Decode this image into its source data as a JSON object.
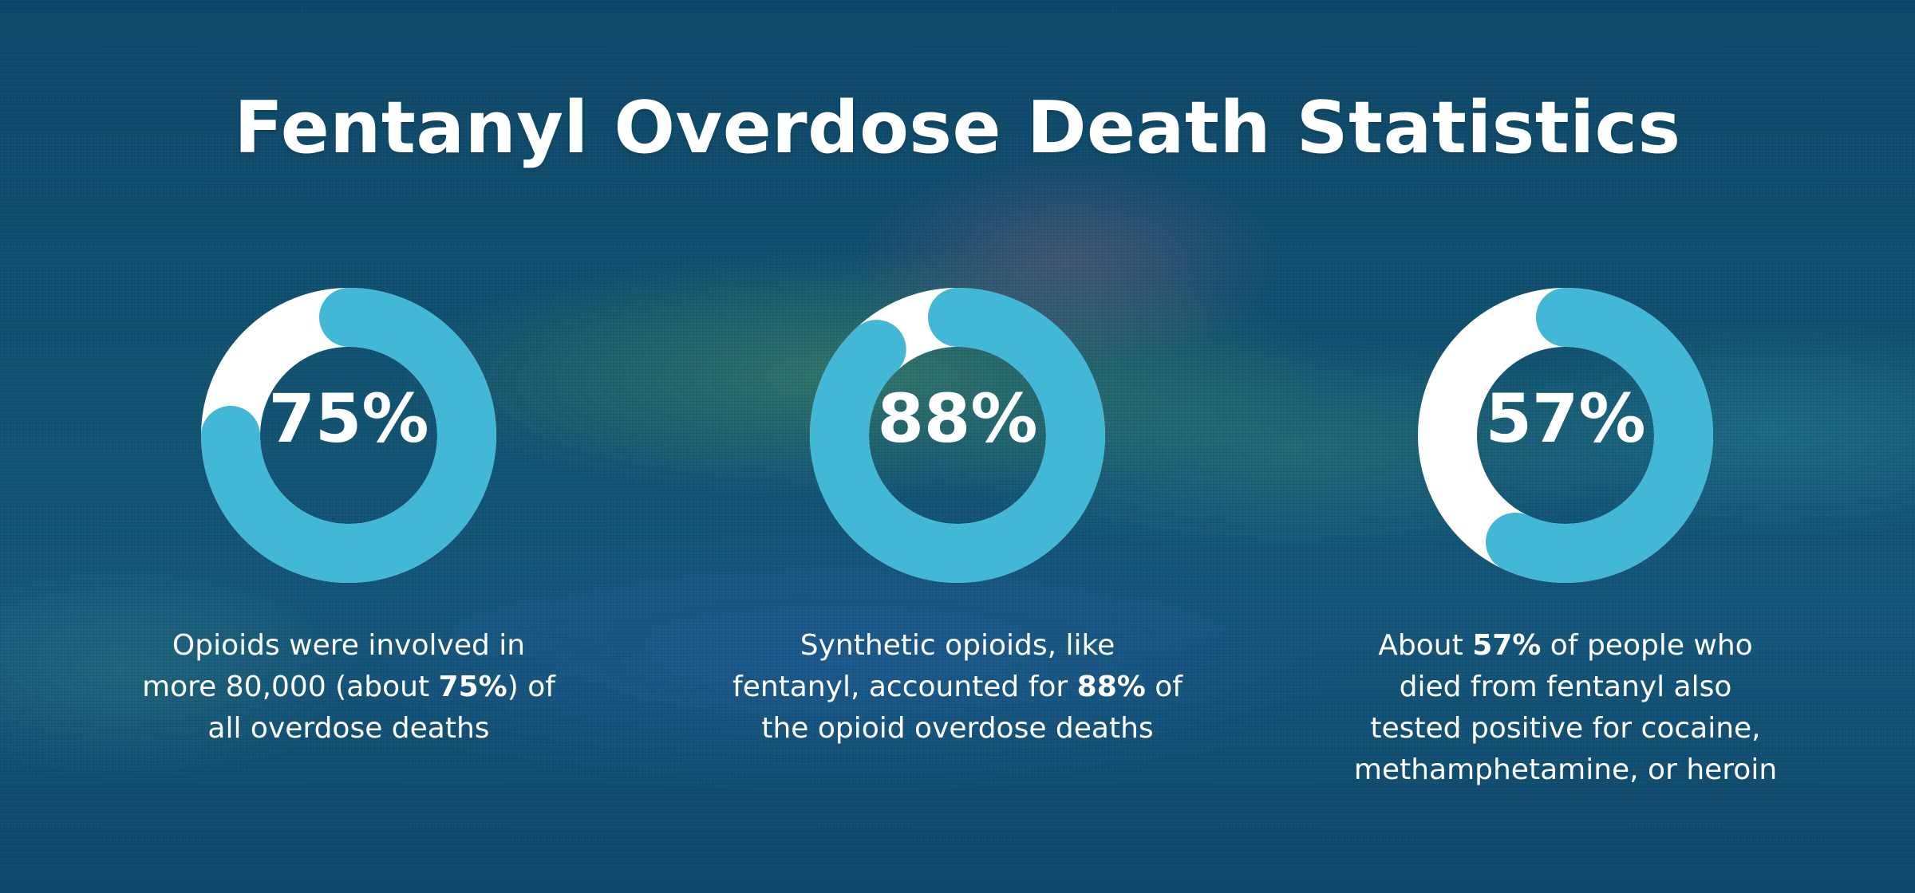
{
  "title": "Fentanyl Overdose Death Statistics",
  "colors": {
    "ring_track": "#ffffff",
    "ring_fill": "#43b7d6",
    "text": "#ffffff"
  },
  "stats": [
    {
      "value_text": "75%",
      "caption": {
        "l1": "Opioids were involved in",
        "l2_pre": "more 80,000 (about ",
        "l2_bold": "75%",
        "l2_post": ") of",
        "l3": "all overdose deaths"
      }
    },
    {
      "value_text": "88%",
      "caption": {
        "l1": "Synthetic opioids, like",
        "l2_pre": "fentanyl, accounted for ",
        "l2_bold": "88%",
        "l2_post": " of",
        "l3": "the opioid overdose deaths"
      }
    },
    {
      "value_text": "57%",
      "caption": {
        "l1_pre": "About ",
        "l1_bold": "57%",
        "l1_post": " of people who",
        "l2": "died from fentanyl also",
        "l3": "tested positive for cocaine,",
        "l4": "methamphetamine, or heroin"
      }
    }
  ],
  "chart_data": [
    {
      "type": "pie",
      "values": [
        75,
        25
      ],
      "title": ""
    },
    {
      "type": "pie",
      "values": [
        88,
        12
      ],
      "title": ""
    },
    {
      "type": "pie",
      "values": [
        57,
        43
      ],
      "title": ""
    }
  ]
}
